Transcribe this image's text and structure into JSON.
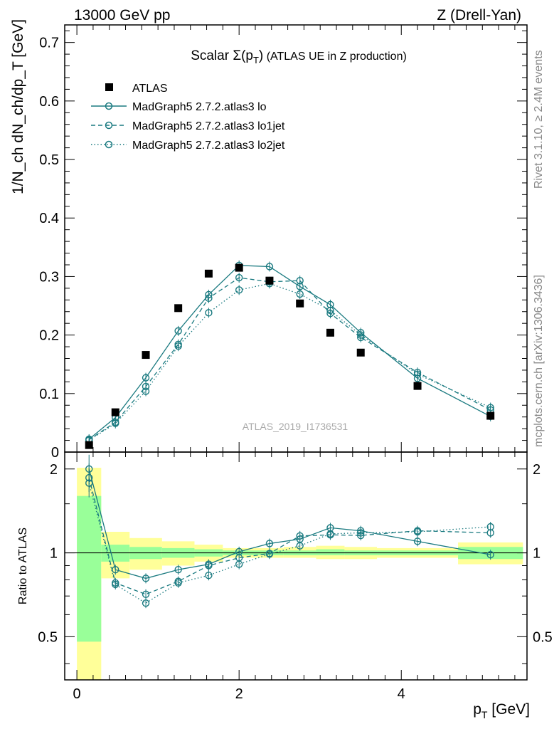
{
  "header": {
    "left": "13000 GeV pp",
    "right": "Z (Drell-Yan)"
  },
  "side_labels": {
    "rivet": "Rivet 3.1.10, ≥ 2.4M events",
    "mcplots": "mcplots.cern.ch [arXiv:1306.3436]"
  },
  "colors": {
    "data": "#000000",
    "mc": "#1a7a80",
    "band_inner": "#99ff99",
    "band_outer": "#ffff99"
  },
  "chart_data": [
    {
      "type": "scatter",
      "title_main": "Scalar Σ(p",
      "title_sub": "T",
      "title_close": ")",
      "title_rest": " (ATLAS UE in Z production)",
      "analysis_tag": "ATLAS_2019_I1736531",
      "ylabel": "1/N_ch dN_ch/dp_T [GeV]",
      "xlim": [
        -0.15,
        5.55
      ],
      "ylim": [
        0,
        0.73
      ],
      "yticks": [
        "0",
        "0.1",
        "0.2",
        "0.3",
        "0.4",
        "0.5",
        "0.6",
        "0.7"
      ],
      "legend_position": "top-left",
      "series": [
        {
          "name": "ATLAS",
          "style": "data",
          "x": [
            0.15,
            0.475,
            0.85,
            1.25,
            1.625,
            2.0,
            2.375,
            2.75,
            3.125,
            3.5,
            4.2,
            5.1
          ],
          "y": [
            0.012,
            0.068,
            0.166,
            0.246,
            0.305,
            0.315,
            0.293,
            0.254,
            0.204,
            0.17,
            0.113,
            0.062
          ]
        },
        {
          "name": "MadGraph5 2.7.2.atlas3 lo",
          "style": "solid",
          "x": [
            0.15,
            0.475,
            0.85,
            1.25,
            1.625,
            2.0,
            2.375,
            2.75,
            3.125,
            3.5,
            4.2,
            5.1
          ],
          "y": [
            0.022,
            0.059,
            0.127,
            0.207,
            0.269,
            0.319,
            0.317,
            0.283,
            0.252,
            0.204,
            0.126,
            0.061
          ]
        },
        {
          "name": "MadGraph5 2.7.2.atlas3 lo1jet",
          "style": "dashed",
          "x": [
            0.15,
            0.475,
            0.85,
            1.25,
            1.625,
            2.0,
            2.375,
            2.75,
            3.125,
            3.5,
            4.2,
            5.1
          ],
          "y": [
            0.021,
            0.051,
            0.112,
            0.184,
            0.263,
            0.298,
            0.291,
            0.293,
            0.237,
            0.196,
            0.136,
            0.072
          ]
        },
        {
          "name": "MadGraph5 2.7.2.atlas3 lo2jet",
          "style": "dotted",
          "x": [
            0.15,
            0.475,
            0.85,
            1.25,
            1.625,
            2.0,
            2.375,
            2.75,
            3.125,
            3.5,
            4.2,
            5.1
          ],
          "y": [
            0.02,
            0.049,
            0.104,
            0.181,
            0.238,
            0.277,
            0.288,
            0.27,
            0.242,
            0.2,
            0.133,
            0.076
          ]
        }
      ]
    },
    {
      "type": "scatter",
      "ylabel": "Ratio to ATLAS",
      "xlabel_main": "p",
      "xlabel_sub": "T",
      "xlabel_unit": " [GeV]",
      "xticks": [
        "0",
        "2",
        "4"
      ],
      "yticks": [
        "0.5",
        "1",
        "2"
      ],
      "ylog": true,
      "ylim": [
        0.35,
        2.3
      ],
      "bins": [
        0,
        0.3,
        0.65,
        1.05,
        1.45,
        1.8,
        2.2,
        2.55,
        2.95,
        3.3,
        3.7,
        4.7,
        5.5
      ],
      "band_inner": [
        [
          0.48,
          1.6
        ],
        [
          0.93,
          1.07
        ],
        [
          0.95,
          1.05
        ],
        [
          0.96,
          1.04
        ],
        [
          0.97,
          1.03
        ],
        [
          0.98,
          1.02
        ],
        [
          0.98,
          1.02
        ],
        [
          0.98,
          1.02
        ],
        [
          0.98,
          1.03
        ],
        [
          0.98,
          1.02
        ],
        [
          0.98,
          1.02
        ],
        [
          0.95,
          1.05
        ]
      ],
      "band_outer": [
        [
          0.35,
          2.02
        ],
        [
          0.81,
          1.19
        ],
        [
          0.87,
          1.13
        ],
        [
          0.9,
          1.1
        ],
        [
          0.93,
          1.07
        ],
        [
          0.96,
          1.04
        ],
        [
          0.96,
          1.04
        ],
        [
          0.96,
          1.05
        ],
        [
          0.95,
          1.06
        ],
        [
          0.95,
          1.05
        ],
        [
          0.96,
          1.04
        ],
        [
          0.91,
          1.09
        ]
      ],
      "series": [
        {
          "name": "MadGraph5 2.7.2.atlas3 lo",
          "style": "solid",
          "x": [
            0.15,
            0.475,
            0.85,
            1.25,
            1.625,
            2.0,
            2.375,
            2.75,
            3.125,
            3.5,
            4.2,
            5.1
          ],
          "y": [
            2.0,
            0.87,
            0.81,
            0.87,
            0.91,
            1.01,
            1.08,
            1.12,
            1.23,
            1.2,
            1.1,
            0.985
          ]
        },
        {
          "name": "MadGraph5 2.7.2.atlas3 lo1jet",
          "style": "dashed",
          "x": [
            0.15,
            0.475,
            0.85,
            1.25,
            1.625,
            2.0,
            2.375,
            2.75,
            3.125,
            3.5,
            4.2,
            5.1
          ],
          "y": [
            1.86,
            0.78,
            0.71,
            0.79,
            0.9,
            0.96,
            0.995,
            1.15,
            1.16,
            1.155,
            1.2,
            1.18
          ]
        },
        {
          "name": "MadGraph5 2.7.2.atlas3 lo2jet",
          "style": "dotted",
          "x": [
            0.15,
            0.475,
            0.85,
            1.25,
            1.625,
            2.0,
            2.375,
            2.75,
            3.125,
            3.5,
            4.2,
            5.1
          ],
          "y": [
            1.78,
            0.77,
            0.66,
            0.78,
            0.83,
            0.91,
            0.99,
            1.06,
            1.17,
            1.18,
            1.19,
            1.24
          ]
        }
      ]
    }
  ]
}
